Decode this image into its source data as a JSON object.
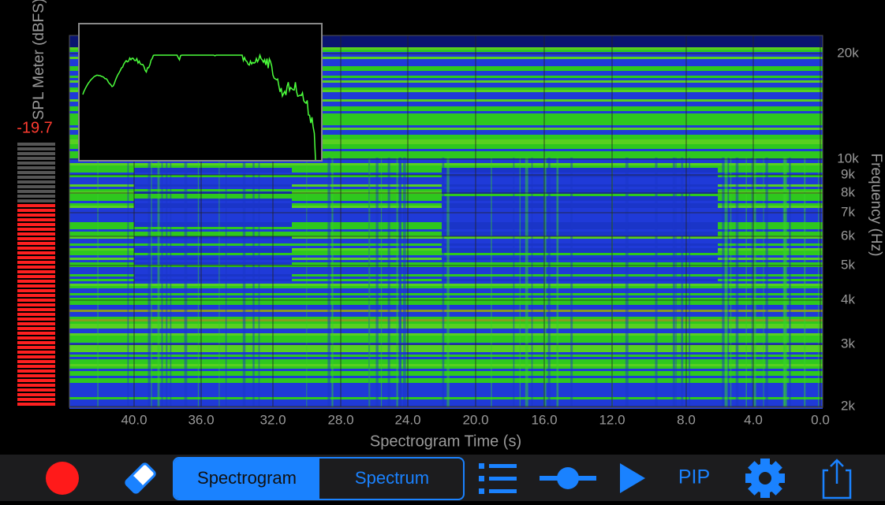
{
  "spl_meter": {
    "label": "SPL Meter (dBFS)",
    "value": "-19.7"
  },
  "spectrogram": {
    "x_axis": {
      "label": "Spectrogram Time (s)",
      "ticks": [
        "40.0",
        "36.0",
        "32.0",
        "28.0",
        "24.0",
        "20.0",
        "16.0",
        "12.0",
        "8.0",
        "4.0",
        "0.0"
      ]
    },
    "y_axis": {
      "label": "Frequency (Hz)",
      "ticks": [
        "20k",
        "10k",
        "9k",
        "8k",
        "7k",
        "6k",
        "5k",
        "4k",
        "3k",
        "2k"
      ]
    }
  },
  "toolbar": {
    "segments": [
      "Spectrogram",
      "Spectrum"
    ],
    "pip": "PIP"
  }
}
